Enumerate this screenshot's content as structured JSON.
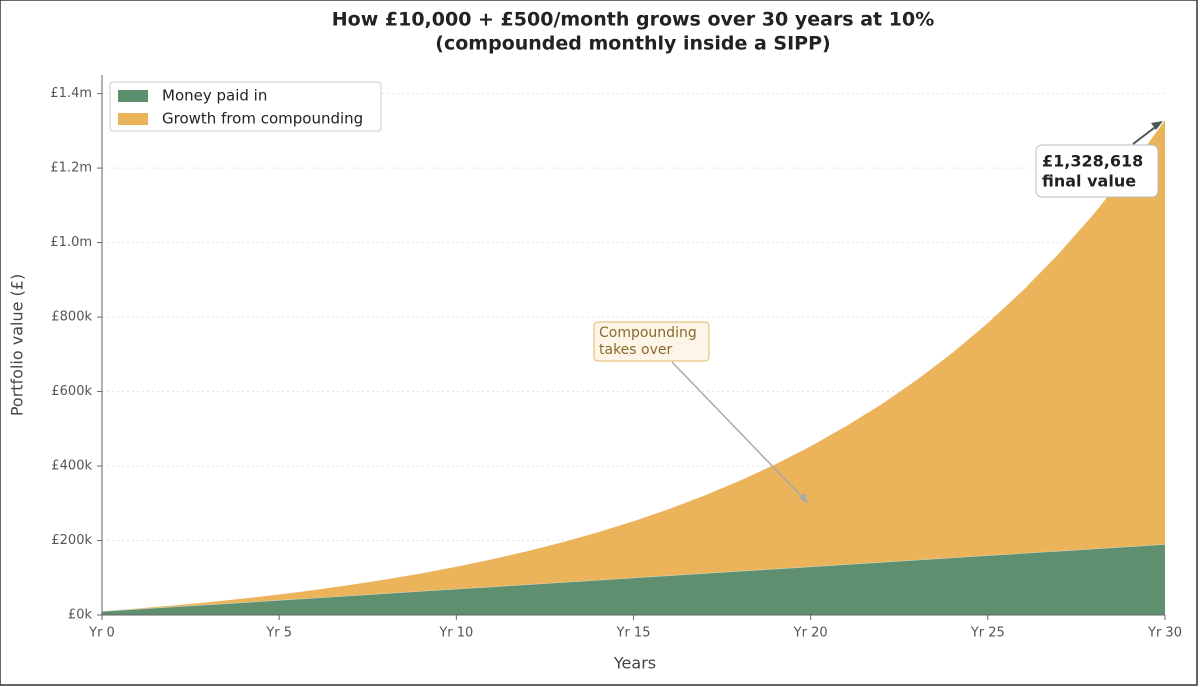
{
  "chart_data": {
    "type": "stacked_area",
    "title_lines": [
      "How £10,000 + £500/month grows over 30 years at 10%",
      "(compounded monthly inside a SIPP)"
    ],
    "xlabel": "Years",
    "ylabel": "Portfolio value (£)",
    "x": [
      0,
      1,
      2,
      3,
      4,
      5,
      6,
      7,
      8,
      9,
      10,
      11,
      12,
      13,
      14,
      15,
      16,
      17,
      18,
      19,
      20,
      21,
      22,
      23,
      24,
      25,
      26,
      27,
      28,
      29,
      30
    ],
    "series": [
      {
        "name": "Money paid in",
        "color": "#5e8f6e",
        "values": [
          10000,
          16000,
          22000,
          28000,
          34000,
          40000,
          46000,
          52000,
          58000,
          64000,
          70000,
          76000,
          82000,
          88000,
          94000,
          100000,
          106000,
          112000,
          118000,
          124000,
          130000,
          136000,
          142000,
          148000,
          154000,
          160000,
          166000,
          172000,
          178000,
          184000,
          190000
        ]
      },
      {
        "name": "Growth from compounding",
        "color": "#ebb35a",
        "values": [
          0,
          1330,
          3427,
          6373,
          10255,
          15172,
          21232,
          28554,
          37272,
          47531,
          59493,
          73335,
          89256,
          107471,
          128222,
          151775,
          178421,
          208487,
          242329,
          280343,
          322965,
          370679,
          424017,
          483569,
          549985,
          623984,
          706360,
          797989,
          899842,
          1012989,
          1138618
        ]
      }
    ],
    "xlim": [
      0,
      30
    ],
    "xticks": [
      {
        "value": 0,
        "label": "Yr 0"
      },
      {
        "value": 5,
        "label": "Yr 5"
      },
      {
        "value": 10,
        "label": "Yr 10"
      },
      {
        "value": 15,
        "label": "Yr 15"
      },
      {
        "value": 20,
        "label": "Yr 20"
      },
      {
        "value": 25,
        "label": "Yr 25"
      },
      {
        "value": 30,
        "label": "Yr 30"
      }
    ],
    "ylim": [
      0,
      1450000
    ],
    "yticks": [
      {
        "value": 0,
        "label": "£0k"
      },
      {
        "value": 200000,
        "label": "£200k"
      },
      {
        "value": 400000,
        "label": "£400k"
      },
      {
        "value": 600000,
        "label": "£600k"
      },
      {
        "value": 800000,
        "label": "£800k"
      },
      {
        "value": 1000000,
        "label": "£1.0m"
      },
      {
        "value": 1200000,
        "label": "£1.2m"
      },
      {
        "value": 1400000,
        "label": "£1.4m"
      }
    ],
    "grid": true,
    "legend": "upper left",
    "annotations": [
      {
        "lines": [
          "Compounding",
          "takes over"
        ]
      },
      {
        "lines": [
          "£1,328,618",
          "final value"
        ]
      }
    ]
  }
}
